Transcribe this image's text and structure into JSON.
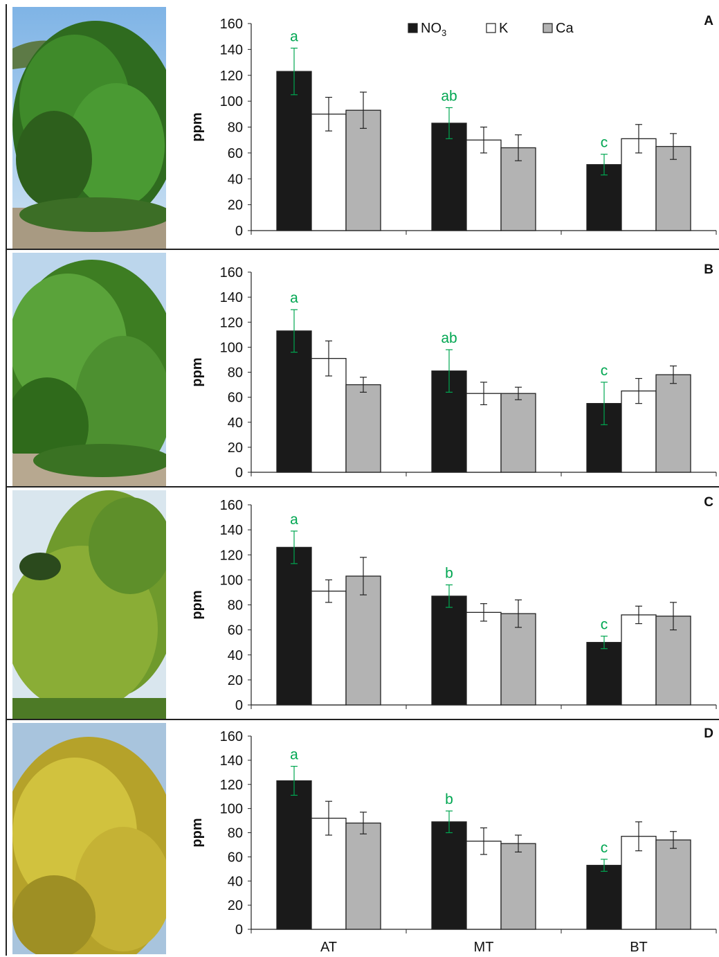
{
  "legend": [
    {
      "label": "NO",
      "sub": "3",
      "fill": "#1a1a1a"
    },
    {
      "label": "K",
      "sub": "",
      "fill": "#ffffff"
    },
    {
      "label": "Ca",
      "sub": "",
      "fill": "#b3b3b3"
    }
  ],
  "colors": {
    "no3": "#1a1a1a",
    "k": "#ffffff",
    "ca": "#b3b3b3",
    "letters": "#00a651"
  },
  "chart_data": [
    {
      "type": "bar",
      "panel_label": "A",
      "ylabel": "ppm",
      "ylim": [
        0,
        160
      ],
      "yticks": [
        "0",
        "20",
        "40",
        "60",
        "80",
        "100",
        "120",
        "140",
        "160"
      ],
      "categories": [
        "AT",
        "MT",
        "BT"
      ],
      "series": [
        {
          "name": "NO3",
          "values": [
            123,
            83,
            51
          ],
          "errors": [
            18,
            12,
            8
          ]
        },
        {
          "name": "K",
          "values": [
            90,
            70,
            71
          ],
          "errors": [
            13,
            10,
            11
          ]
        },
        {
          "name": "Ca",
          "values": [
            93,
            64,
            65
          ],
          "errors": [
            14,
            10,
            10
          ]
        }
      ],
      "letters": [
        "a",
        "ab",
        "c"
      ]
    },
    {
      "type": "bar",
      "panel_label": "B",
      "ylabel": "ppm",
      "ylim": [
        0,
        160
      ],
      "yticks": [
        "0",
        "20",
        "40",
        "60",
        "80",
        "100",
        "120",
        "140",
        "160"
      ],
      "categories": [
        "AT",
        "MT",
        "BT"
      ],
      "series": [
        {
          "name": "NO3",
          "values": [
            113,
            81,
            55
          ],
          "errors": [
            17,
            17,
            17
          ]
        },
        {
          "name": "K",
          "values": [
            91,
            63,
            65
          ],
          "errors": [
            14,
            9,
            10
          ]
        },
        {
          "name": "Ca",
          "values": [
            70,
            63,
            78
          ],
          "errors": [
            6,
            5,
            7
          ]
        }
      ],
      "letters": [
        "a",
        "ab",
        "c"
      ]
    },
    {
      "type": "bar",
      "panel_label": "C",
      "ylabel": "ppm",
      "ylim": [
        0,
        160
      ],
      "yticks": [
        "0",
        "20",
        "40",
        "60",
        "80",
        "100",
        "120",
        "140",
        "160"
      ],
      "categories": [
        "AT",
        "MT",
        "BT"
      ],
      "series": [
        {
          "name": "NO3",
          "values": [
            126,
            87,
            50
          ],
          "errors": [
            13,
            9,
            5
          ]
        },
        {
          "name": "K",
          "values": [
            91,
            74,
            72
          ],
          "errors": [
            9,
            7,
            7
          ]
        },
        {
          "name": "Ca",
          "values": [
            103,
            73,
            71
          ],
          "errors": [
            15,
            11,
            11
          ]
        }
      ],
      "letters": [
        "a",
        "b",
        "c"
      ]
    },
    {
      "type": "bar",
      "panel_label": "D",
      "ylabel": "ppm",
      "ylim": [
        0,
        160
      ],
      "yticks": [
        "0",
        "20",
        "40",
        "60",
        "80",
        "100",
        "120",
        "140",
        "160"
      ],
      "categories": [
        "AT",
        "MT",
        "BT"
      ],
      "series": [
        {
          "name": "NO3",
          "values": [
            123,
            89,
            53
          ],
          "errors": [
            12,
            9,
            5
          ]
        },
        {
          "name": "K",
          "values": [
            92,
            73,
            77
          ],
          "errors": [
            14,
            11,
            12
          ]
        },
        {
          "name": "Ca",
          "values": [
            88,
            71,
            74
          ],
          "errors": [
            9,
            7,
            7
          ]
        }
      ],
      "letters": [
        "a",
        "b",
        "c"
      ]
    }
  ]
}
